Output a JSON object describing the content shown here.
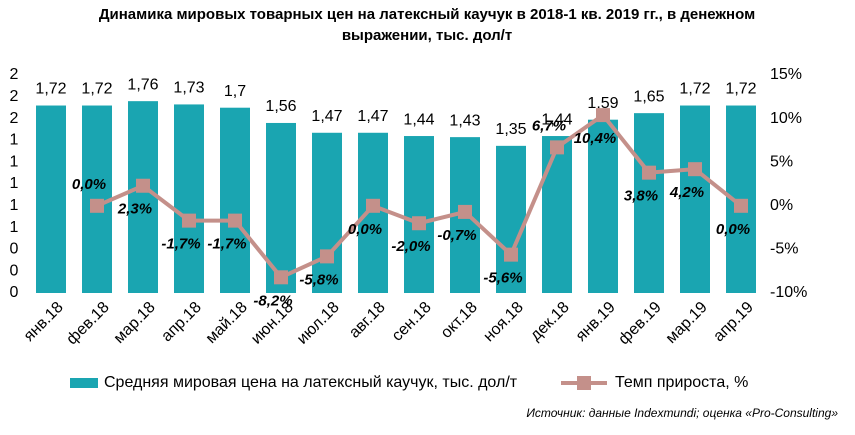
{
  "chart_data": {
    "type": "bar-line",
    "title": [
      "Динамика мировых товарных цен на латексный каучук в 2018-1 кв. 2019 гг., в денежном",
      "выражении, тыс. дол/т"
    ],
    "categories": [
      "янв.18",
      "фев.18",
      "мар.18",
      "апр.18",
      "май.18",
      "июн.18",
      "июл.18",
      "авг.18",
      "сен.18",
      "окт.18",
      "ноя.18",
      "дек.18",
      "янв.19",
      "фев.19",
      "мар.19",
      "апр.19"
    ],
    "series": [
      {
        "name": "Средняя мировая цена на латексный каучук, тыс. дол/т",
        "color": "#1aa5b1",
        "type": "bar",
        "values": [
          1.72,
          1.72,
          1.76,
          1.73,
          1.7,
          1.56,
          1.47,
          1.47,
          1.44,
          1.43,
          1.35,
          1.44,
          1.59,
          1.65,
          1.72,
          1.72
        ],
        "value_labels": [
          "1,72",
          "1,72",
          "1,76",
          "1,73",
          "1,7",
          "1,56",
          "1,47",
          "1,47",
          "1,44",
          "1,43",
          "1,35",
          "1,44",
          "1,59",
          "1,65",
          "1,72",
          "1,72"
        ]
      },
      {
        "name": "Темп прироста, %",
        "color": "#c4908a",
        "type": "line",
        "axis": "y2",
        "values": [
          null,
          0.0,
          2.3,
          -1.7,
          -1.7,
          -8.2,
          -5.8,
          0.0,
          -2.0,
          -0.7,
          -5.6,
          6.7,
          10.4,
          3.8,
          4.2,
          0.0
        ],
        "value_labels": [
          null,
          "0,0%",
          "2,3%",
          "-1,7%",
          "-1,7%",
          "-8,2%",
          "-5,8%",
          "0,0%",
          "-2,0%",
          "-0,7%",
          "-5,6%",
          "6,7%",
          "10,4%",
          "3,8%",
          "4,2%",
          "0,0%"
        ]
      }
    ],
    "ylim": [
      0,
      2
    ],
    "yticks": [
      {
        "value": 0,
        "label": "0"
      },
      {
        "value": 0.2,
        "label": "0"
      },
      {
        "value": 0.4,
        "label": "0"
      },
      {
        "value": 0.6,
        "label": "1"
      },
      {
        "value": 0.8,
        "label": "1"
      },
      {
        "value": 1.0,
        "label": "1"
      },
      {
        "value": 1.2,
        "label": "1"
      },
      {
        "value": 1.4,
        "label": "1"
      },
      {
        "value": 1.6,
        "label": "2"
      },
      {
        "value": 1.8,
        "label": "2"
      },
      {
        "value": 2.0,
        "label": "2"
      }
    ],
    "y2lim": [
      -10,
      15
    ],
    "y2ticks": [
      {
        "value": -10,
        "label": "-10%"
      },
      {
        "value": -5,
        "label": "-5%"
      },
      {
        "value": 0,
        "label": "0%"
      },
      {
        "value": 5,
        "label": "5%"
      },
      {
        "value": 10,
        "label": "10%"
      },
      {
        "value": 15,
        "label": "15%"
      }
    ],
    "legend": "bottom",
    "source": "Источник: данные Indexmundi; оценка «Pro-Consulting»"
  }
}
